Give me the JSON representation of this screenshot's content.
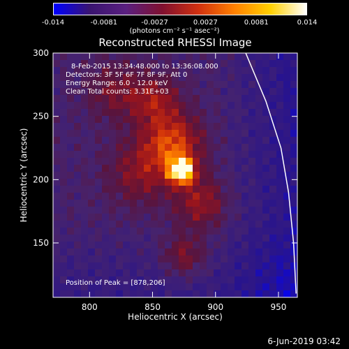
{
  "chart_data": {
    "type": "heatmap",
    "title": "Reconstructed RHESSI Image",
    "xlabel": "Heliocentric X (arcsec)",
    "ylabel": "Heliocentric Y (arcsec)",
    "xlim": [
      771,
      965
    ],
    "ylim": [
      107,
      300
    ],
    "x_ticks": [
      800,
      850,
      900,
      950
    ],
    "y_ticks": [
      150,
      200,
      250,
      300
    ],
    "colorbar": {
      "range": [
        -0.014,
        0.014
      ],
      "ticks": [
        "-0.014",
        "-0.0081",
        "-0.0027",
        "0.0027",
        "0.0081",
        "0.014"
      ],
      "unit_label": "(photons cm⁻² s⁻¹ asec⁻²)",
      "colors": [
        "#0000ff",
        "#3a1470",
        "#5a2080",
        "#801030",
        "#d03010",
        "#ff8000",
        "#ffd000",
        "#ffffff"
      ]
    },
    "annotations": [
      "8-Feb-2015 13:34:48.000 to 13:36:08.000",
      "Detectors: 3F 5F 6F 7F 8F 9F, Att 0",
      "Energy Range: 6.0 - 12.0 keV",
      "Clean     Total counts: 3.31E+03"
    ],
    "peak_text": "Position of Peak = [878,206]",
    "peak": [
      878,
      206
    ],
    "sources": [
      {
        "x": 873,
        "y": 207,
        "sigma": 7,
        "amplitude": 1.0
      },
      {
        "x": 866,
        "y": 228,
        "sigma": 16,
        "amplitude": 0.55
      },
      {
        "x": 852,
        "y": 262,
        "sigma": 14,
        "amplitude": 0.35
      },
      {
        "x": 888,
        "y": 182,
        "sigma": 14,
        "amplitude": 0.35
      },
      {
        "x": 840,
        "y": 205,
        "sigma": 18,
        "amplitude": 0.3
      },
      {
        "x": 820,
        "y": 270,
        "sigma": 16,
        "amplitude": 0.25
      },
      {
        "x": 875,
        "y": 140,
        "sigma": 12,
        "amplitude": 0.3
      }
    ],
    "limb_curve": [
      [
        924,
        300
      ],
      [
        940,
        262
      ],
      [
        952,
        225
      ],
      [
        958,
        190
      ],
      [
        962,
        150
      ],
      [
        964,
        110
      ]
    ]
  },
  "footer": {
    "date": "6-Jun-2019 03:42"
  }
}
